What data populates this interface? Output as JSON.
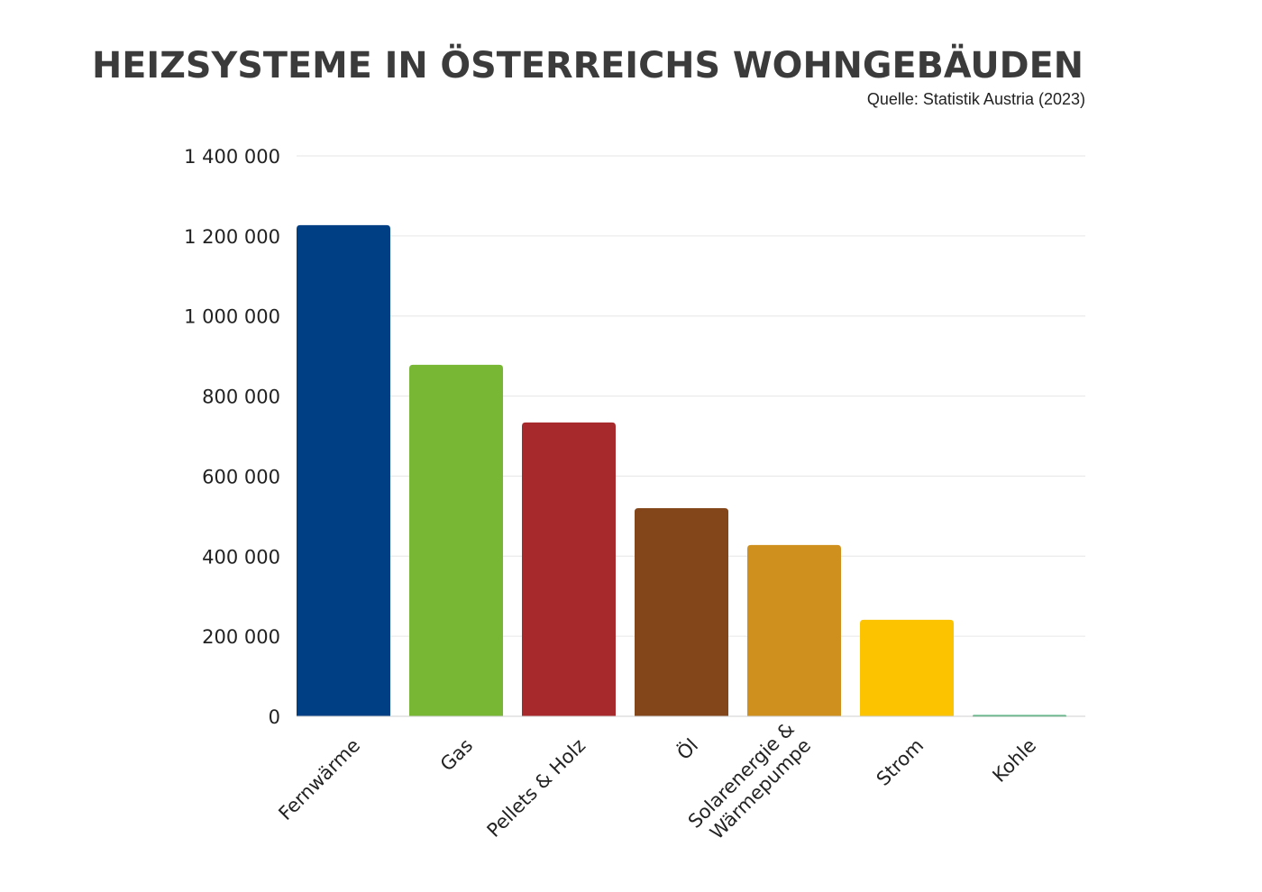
{
  "chart_data": {
    "type": "bar",
    "title": "HEIZSYSTEME IN ÖSTERREICHS WOHNGEBÄUDEN",
    "subtitle": "Quelle: Statistik Austria (2023)",
    "xlabel": "",
    "ylabel": "",
    "ylim": [
      0,
      1400000
    ],
    "yticks": [
      0,
      200000,
      400000,
      600000,
      800000,
      1000000,
      1200000,
      1400000
    ],
    "ytick_labels": [
      "0",
      "200 000",
      "400 000",
      "600 000",
      "800 000",
      "1 000 000",
      "1 200 000",
      "1 400 000"
    ],
    "grid": true,
    "categories": [
      "Fernwärme",
      "Gas",
      "Pellets & Holz",
      "Öl",
      "Solarenergie & Wärmepumpe",
      "Strom",
      "Kohle"
    ],
    "category_lines": [
      [
        "Fernwärme"
      ],
      [
        "Gas"
      ],
      [
        "Pellets & Holz"
      ],
      [
        "Öl"
      ],
      [
        "Solarenergie &",
        "Wärmepumpe"
      ],
      [
        "Strom"
      ],
      [
        "Kohle"
      ]
    ],
    "values": [
      1227000,
      878000,
      734000,
      520000,
      428000,
      241000,
      3000
    ],
    "colors": [
      "#003f84",
      "#77b734",
      "#a8292c",
      "#83461a",
      "#cf901e",
      "#fcc300",
      "#0a9447"
    ]
  }
}
